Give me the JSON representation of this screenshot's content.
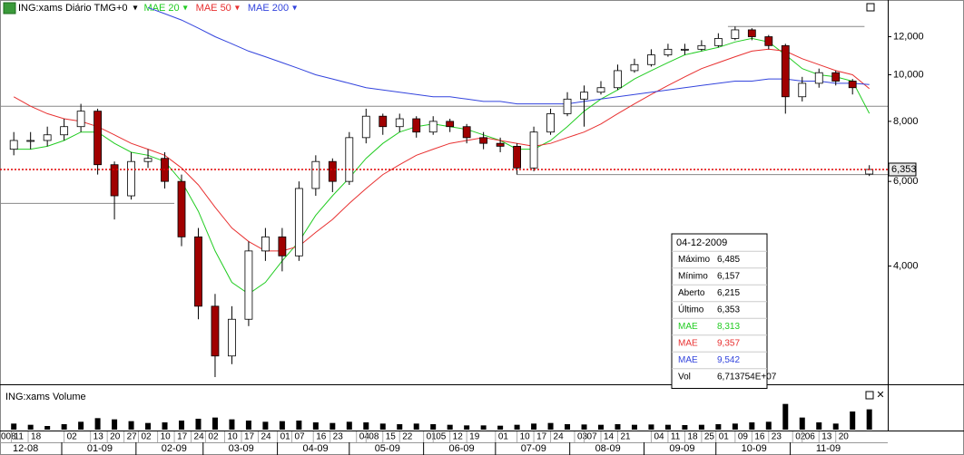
{
  "chart_data": {
    "type": "candlestick",
    "title": "ING:xams Diário TMG+0",
    "x": [
      "2008-12-12",
      "2008-12-19",
      "2008-12-26",
      "2009-01-02",
      "2009-01-09",
      "2009-01-16",
      "2009-01-23",
      "2009-01-30",
      "2009-02-06",
      "2009-02-13",
      "2009-02-20",
      "2009-02-27",
      "2009-03-06",
      "2009-03-13",
      "2009-03-20",
      "2009-03-27",
      "2009-04-03",
      "2009-04-10",
      "2009-04-17",
      "2009-04-24",
      "2009-05-01",
      "2009-05-08",
      "2009-05-15",
      "2009-05-22",
      "2009-05-29",
      "2009-06-05",
      "2009-06-12",
      "2009-06-19",
      "2009-06-26",
      "2009-07-03",
      "2009-07-10",
      "2009-07-17",
      "2009-07-24",
      "2009-07-31",
      "2009-08-07",
      "2009-08-14",
      "2009-08-21",
      "2009-08-28",
      "2009-09-04",
      "2009-09-11",
      "2009-09-18",
      "2009-09-25",
      "2009-10-02",
      "2009-10-09",
      "2009-10-16",
      "2009-10-23",
      "2009-10-30",
      "2009-11-06",
      "2009-11-13",
      "2009-11-20",
      "2009-11-27",
      "2009-12-04"
    ],
    "open": [
      7.0,
      7.3,
      7.3,
      7.5,
      7.8,
      8.4,
      6.5,
      5.6,
      6.6,
      6.7,
      6.0,
      4.6,
      3.3,
      2.6,
      3.1,
      4.3,
      4.6,
      4.2,
      5.8,
      6.6,
      6.0,
      7.4,
      8.2,
      7.8,
      8.1,
      7.6,
      8.0,
      7.8,
      7.4,
      7.2,
      7.1,
      6.4,
      7.6,
      8.3,
      8.9,
      9.2,
      9.4,
      10.2,
      10.5,
      11.0,
      11.3,
      11.3,
      11.5,
      11.9,
      12.4,
      12.0,
      11.5,
      9.0,
      9.6,
      10.1,
      9.7,
      6.215
    ],
    "high": [
      7.6,
      7.6,
      7.8,
      8.1,
      8.7,
      8.5,
      6.6,
      6.9,
      7.0,
      6.9,
      6.2,
      4.8,
      3.5,
      3.3,
      4.5,
      4.8,
      4.8,
      6.0,
      6.8,
      6.7,
      7.6,
      8.5,
      8.3,
      8.3,
      8.2,
      8.2,
      8.1,
      7.9,
      7.6,
      7.4,
      7.2,
      7.8,
      8.5,
      9.2,
      9.5,
      9.7,
      10.5,
      10.8,
      11.3,
      11.6,
      11.6,
      11.8,
      12.2,
      12.6,
      12.5,
      12.1,
      11.6,
      9.9,
      10.3,
      10.2,
      9.8,
      6.485
    ],
    "low": [
      6.8,
      7.0,
      7.1,
      7.3,
      7.6,
      6.2,
      5.0,
      5.5,
      6.4,
      5.8,
      4.4,
      3.1,
      2.35,
      2.5,
      3.0,
      4.1,
      3.9,
      4.1,
      5.6,
      5.7,
      5.9,
      7.2,
      7.5,
      7.6,
      7.4,
      7.5,
      7.6,
      7.2,
      7.0,
      6.9,
      6.2,
      6.3,
      7.5,
      8.2,
      7.8,
      9.1,
      9.3,
      10.1,
      10.4,
      10.9,
      11.0,
      11.2,
      11.4,
      11.8,
      11.8,
      11.3,
      8.3,
      8.8,
      9.4,
      9.5,
      9.1,
      6.157
    ],
    "close": [
      7.3,
      7.3,
      7.5,
      7.8,
      8.4,
      6.5,
      5.6,
      6.6,
      6.7,
      6.0,
      4.6,
      3.3,
      2.6,
      3.1,
      4.3,
      4.6,
      4.2,
      5.8,
      6.6,
      6.0,
      7.4,
      8.2,
      7.8,
      8.1,
      7.6,
      8.0,
      7.8,
      7.4,
      7.2,
      7.1,
      6.4,
      7.6,
      8.3,
      8.9,
      9.2,
      9.4,
      10.2,
      10.5,
      11.0,
      11.3,
      11.3,
      11.5,
      11.9,
      12.4,
      12.0,
      11.5,
      9.0,
      9.6,
      10.1,
      9.7,
      9.4,
      6.353
    ],
    "up_color": "#ffffff",
    "down_color": "#a00000",
    "last_value_label": "6,353",
    "series": [
      {
        "name": "MAE 20",
        "color": "#22cc22",
        "values": [
          7.0,
          7.0,
          7.1,
          7.3,
          7.6,
          7.6,
          7.2,
          6.9,
          6.8,
          6.6,
          6.0,
          5.2,
          4.3,
          3.7,
          3.5,
          3.7,
          4.1,
          4.5,
          5.1,
          5.6,
          6.1,
          6.7,
          7.2,
          7.6,
          7.8,
          7.9,
          7.8,
          7.7,
          7.5,
          7.3,
          7.0,
          7.0,
          7.3,
          7.8,
          8.4,
          8.9,
          9.3,
          9.8,
          10.2,
          10.6,
          11.0,
          11.2,
          11.4,
          11.7,
          11.9,
          11.7,
          11.0,
          10.3,
          10.0,
          9.9,
          9.7,
          8.313
        ]
      },
      {
        "name": "MAE 50",
        "color": "#e83030",
        "values": [
          9.0,
          8.6,
          8.3,
          8.1,
          8.0,
          7.8,
          7.5,
          7.2,
          7.0,
          6.8,
          6.4,
          5.9,
          5.3,
          4.8,
          4.5,
          4.3,
          4.3,
          4.4,
          4.7,
          5.0,
          5.4,
          5.8,
          6.2,
          6.5,
          6.8,
          7.0,
          7.2,
          7.3,
          7.4,
          7.3,
          7.2,
          7.1,
          7.2,
          7.4,
          7.6,
          7.9,
          8.3,
          8.7,
          9.1,
          9.5,
          9.9,
          10.3,
          10.6,
          10.9,
          11.2,
          11.3,
          11.2,
          10.8,
          10.5,
          10.2,
          10.0,
          9.357
        ]
      },
      {
        "name": "MAE 200",
        "color": "#3344dd",
        "values": [
          null,
          null,
          null,
          null,
          null,
          null,
          null,
          null,
          13.8,
          13.4,
          13.0,
          12.5,
          12.0,
          11.6,
          11.2,
          10.9,
          10.6,
          10.3,
          10.0,
          9.8,
          9.6,
          9.4,
          9.3,
          9.2,
          9.1,
          9.0,
          9.0,
          8.9,
          8.8,
          8.8,
          8.7,
          8.7,
          8.7,
          8.7,
          8.8,
          8.9,
          9.0,
          9.1,
          9.2,
          9.3,
          9.4,
          9.5,
          9.6,
          9.7,
          9.7,
          9.8,
          9.8,
          9.7,
          9.7,
          9.6,
          9.6,
          9.542
        ]
      }
    ],
    "ylim": [
      2.28,
      14
    ],
    "log_scale": true,
    "yticks": [
      {
        "value": 4,
        "label": "4,000"
      },
      {
        "value": 6,
        "label": "6,000"
      },
      {
        "value": 8,
        "label": "8,000"
      },
      {
        "value": 10,
        "label": "10,000"
      },
      {
        "value": 12,
        "label": "12,000"
      }
    ],
    "reference_lines": [
      {
        "value": 8.6,
        "from": "2008-11-25",
        "to": "2009-12-12"
      },
      {
        "value": 5.4,
        "from": "2008-11-25",
        "to": "2009-02-17"
      },
      {
        "value": 12.6,
        "from": "2009-10-06",
        "to": "2009-12-02"
      },
      {
        "value": 6.2,
        "from": "2009-07-10",
        "to": "2009-12-12"
      }
    ],
    "day_ticks": [
      {
        "value": "2008-12-05",
        "label": "008"
      },
      {
        "value": "2008-12-11",
        "label": "11"
      },
      {
        "value": "2008-12-18",
        "label": "18"
      },
      {
        "value": "2009-01-02",
        "label": "02"
      },
      {
        "value": "2009-01-13",
        "label": "13"
      },
      {
        "value": "2009-01-20",
        "label": "20"
      },
      {
        "value": "2009-01-27",
        "label": "27"
      },
      {
        "value": "2009-02-02",
        "label": "02"
      },
      {
        "value": "2009-02-10",
        "label": "10"
      },
      {
        "value": "2009-02-17",
        "label": "17"
      },
      {
        "value": "2009-02-24",
        "label": "24"
      },
      {
        "value": "2009-03-02",
        "label": "02"
      },
      {
        "value": "2009-03-10",
        "label": "10"
      },
      {
        "value": "2009-03-17",
        "label": "17"
      },
      {
        "value": "2009-03-24",
        "label": "24"
      },
      {
        "value": "2009-04-01",
        "label": "01"
      },
      {
        "value": "2009-04-07",
        "label": "07"
      },
      {
        "value": "2009-04-16",
        "label": "16"
      },
      {
        "value": "2009-04-23",
        "label": "23"
      },
      {
        "value": "2009-05-04",
        "label": "04"
      },
      {
        "value": "2009-05-08",
        "label": "08"
      },
      {
        "value": "2009-05-15",
        "label": "15"
      },
      {
        "value": "2009-05-22",
        "label": "22"
      },
      {
        "value": "2009-06-01",
        "label": "01"
      },
      {
        "value": "2009-06-05",
        "label": "05"
      },
      {
        "value": "2009-06-12",
        "label": "12"
      },
      {
        "value": "2009-06-19",
        "label": "19"
      },
      {
        "value": "2009-07-01",
        "label": "01"
      },
      {
        "value": "2009-07-10",
        "label": "10"
      },
      {
        "value": "2009-07-17",
        "label": "17"
      },
      {
        "value": "2009-07-24",
        "label": "24"
      },
      {
        "value": "2009-08-03",
        "label": "03"
      },
      {
        "value": "2009-08-07",
        "label": "07"
      },
      {
        "value": "2009-08-14",
        "label": "14"
      },
      {
        "value": "2009-08-21",
        "label": "21"
      },
      {
        "value": "2009-09-04",
        "label": "04"
      },
      {
        "value": "2009-09-11",
        "label": "11"
      },
      {
        "value": "2009-09-18",
        "label": "18"
      },
      {
        "value": "2009-09-25",
        "label": "25"
      },
      {
        "value": "2009-10-01",
        "label": "01"
      },
      {
        "value": "2009-10-09",
        "label": "09"
      },
      {
        "value": "2009-10-16",
        "label": "16"
      },
      {
        "value": "2009-10-23",
        "label": "23"
      },
      {
        "value": "2009-11-02",
        "label": "02"
      },
      {
        "value": "2009-11-06",
        "label": "06"
      },
      {
        "value": "2009-11-13",
        "label": "13"
      },
      {
        "value": "2009-11-20",
        "label": "20"
      }
    ],
    "month_ticks": [
      {
        "value": "2008-12",
        "label": "12-08"
      },
      {
        "value": "2009-01",
        "label": "01-09"
      },
      {
        "value": "2009-02",
        "label": "02-09"
      },
      {
        "value": "2009-03",
        "label": "03-09"
      },
      {
        "value": "2009-04",
        "label": "04-09"
      },
      {
        "value": "2009-05",
        "label": "05-09"
      },
      {
        "value": "2009-06",
        "label": "06-09"
      },
      {
        "value": "2009-07",
        "label": "07-09"
      },
      {
        "value": "2009-08",
        "label": "08-09"
      },
      {
        "value": "2009-09",
        "label": "09-09"
      },
      {
        "value": "2009-10",
        "label": "10-09"
      },
      {
        "value": "2009-11",
        "label": "11-09"
      }
    ],
    "volume": {
      "title": "ING:xams Volume",
      "color": "#000000",
      "ylim": [
        0,
        90000000
      ],
      "values": [
        20000000,
        16000000,
        12000000,
        18000000,
        26000000,
        38000000,
        34000000,
        28000000,
        22000000,
        24000000,
        30000000,
        36000000,
        40000000,
        34000000,
        30000000,
        26000000,
        28000000,
        30000000,
        24000000,
        22000000,
        26000000,
        24000000,
        20000000,
        18000000,
        20000000,
        18000000,
        16000000,
        14000000,
        14000000,
        13000000,
        16000000,
        20000000,
        22000000,
        18000000,
        17000000,
        16000000,
        18000000,
        16000000,
        17000000,
        16000000,
        15000000,
        16000000,
        18000000,
        20000000,
        24000000,
        26000000,
        85000000,
        40000000,
        24000000,
        20000000,
        60000000,
        67137540
      ]
    },
    "info": {
      "date": "04-12-2009",
      "rows": [
        {
          "label": "Máximo",
          "value": "6,485"
        },
        {
          "label": "Mínimo",
          "value": "6,157"
        },
        {
          "label": "Aberto",
          "value": "6,215"
        },
        {
          "label": "Último",
          "value": "6,353"
        },
        {
          "label": "MAE",
          "value": "8,313",
          "color": "#22cc22"
        },
        {
          "label": "MAE",
          "value": "9,357",
          "color": "#e83030"
        },
        {
          "label": "MAE",
          "value": "9,542",
          "color": "#3344dd"
        },
        {
          "label": "Vol",
          "value": "6,713754E+07"
        }
      ]
    }
  }
}
